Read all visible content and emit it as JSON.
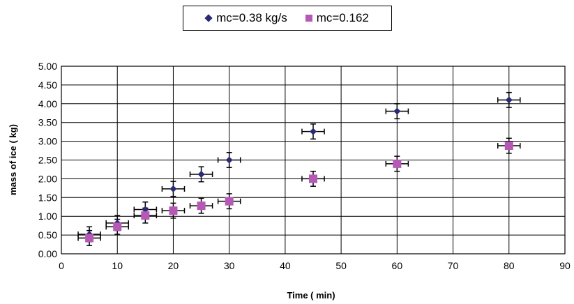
{
  "chart_data": {
    "type": "scatter",
    "xlabel": "Time ( min)",
    "ylabel": "mass of ice ( kg)",
    "xlim": [
      0,
      90
    ],
    "ylim": [
      0,
      5
    ],
    "x_ticks": [
      "0",
      "10",
      "20",
      "30",
      "40",
      "50",
      "60",
      "70",
      "80",
      "90"
    ],
    "y_ticks": [
      "0.00",
      "0.50",
      "1.00",
      "1.50",
      "2.00",
      "2.50",
      "3.00",
      "3.50",
      "4.00",
      "4.50",
      "5.00"
    ],
    "grid": true,
    "legend_position": "top-center",
    "x_error": 2,
    "y_error": 0.2,
    "series": [
      {
        "name": "mc=0.38 kg/s",
        "marker": "diamond",
        "color": "#2b2a72",
        "x": [
          5,
          10,
          15,
          20,
          25,
          30,
          45,
          60,
          80
        ],
        "y": [
          0.52,
          0.82,
          1.18,
          1.73,
          2.12,
          2.5,
          3.26,
          3.8,
          4.1
        ]
      },
      {
        "name": "mc=0.162",
        "marker": "square",
        "color": "#b659b6",
        "x": [
          5,
          10,
          15,
          20,
          25,
          30,
          45,
          60,
          80
        ],
        "y": [
          0.42,
          0.72,
          1.02,
          1.15,
          1.28,
          1.4,
          2.0,
          2.4,
          2.88
        ]
      }
    ]
  }
}
